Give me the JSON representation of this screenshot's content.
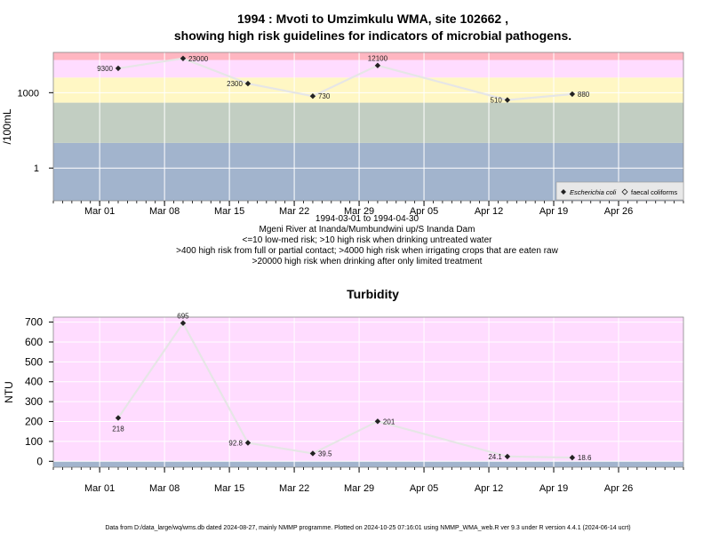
{
  "colors": {
    "band_red": "#ffb6c1",
    "band_pink": "#ffdcff",
    "band_yellow": "#fff7c4",
    "band_green": "#c2cec2",
    "band_blue": "#a2b4cd",
    "grid": "#ffffff",
    "line": "#e6e6e6",
    "marker": "#222222"
  },
  "chart_data": [
    {
      "type": "line",
      "title": "1994 : Mvoti to Umzimkulu WMA, site 102662 ,",
      "subtitle": "showing high risk guidelines for indicators of microbial pathogens.",
      "ylabel": "/100mL",
      "y_scale": "log10",
      "ylim": [
        0.05,
        40000
      ],
      "y_ticks": [
        {
          "v": 1,
          "label": "1"
        },
        {
          "v": 1000,
          "label": "1000"
        }
      ],
      "x_ticks": [
        "Mar 01",
        "Mar 08",
        "Mar 15",
        "Mar 22",
        "Mar 29",
        "Apr 05",
        "Apr 12",
        "Apr 19",
        "Apr 26"
      ],
      "x_tick_dates": [
        "1994-03-01",
        "1994-03-08",
        "1994-03-15",
        "1994-03-22",
        "1994-03-29",
        "1994-04-05",
        "1994-04-12",
        "1994-04-19",
        "1994-04-26"
      ],
      "xlim": [
        "1994-02-24",
        "1994-05-03"
      ],
      "footer_lines": [
        "1994-03-01 to 1994-04-30",
        "Mgeni River at Inanda/Mumbundwini up/S Inanda Dam",
        "<=10 low-med risk; >10 high risk when drinking untreated water",
        ">400 high risk from full or partial contact; >4000 high risk when irrigating crops that are eaten raw",
        ">20000 high risk when drinking after only limited treatment"
      ],
      "bands": [
        {
          "from": 0.05,
          "to": 10,
          "color_key": "band_blue"
        },
        {
          "from": 10,
          "to": 400,
          "color_key": "band_green"
        },
        {
          "from": 400,
          "to": 4000,
          "color_key": "band_yellow"
        },
        {
          "from": 4000,
          "to": 20000,
          "color_key": "band_pink"
        },
        {
          "from": 20000,
          "to": 40000,
          "color_key": "band_red"
        }
      ],
      "legend": {
        "position": "bottom-right",
        "entries": [
          {
            "name": "Escherichia coli",
            "marker": "filled-diamond",
            "italic": true
          },
          {
            "name": "faecal coliforms",
            "marker": "open-diamond",
            "italic": false
          }
        ]
      },
      "series": [
        {
          "name": "Escherichia coli",
          "points": [
            {
              "x": "1994-03-03",
              "y": 9300,
              "label": "9300",
              "label_side": "left"
            },
            {
              "x": "1994-03-10",
              "y": 23000,
              "label": "23000",
              "label_side": "right"
            },
            {
              "x": "1994-03-17",
              "y": 2300,
              "label": "2300",
              "label_side": "left"
            },
            {
              "x": "1994-03-24",
              "y": 730,
              "label": "730",
              "label_side": "right"
            },
            {
              "x": "1994-03-31",
              "y": 12100,
              "label": "12100",
              "label_side": "above"
            },
            {
              "x": "1994-04-14",
              "y": 510,
              "label": "510",
              "label_side": "left"
            },
            {
              "x": "1994-04-21",
              "y": 880,
              "label": "880",
              "label_side": "right"
            }
          ]
        }
      ]
    },
    {
      "type": "line",
      "title": "Turbidity",
      "ylabel": "NTU",
      "y_scale": "linear",
      "ylim": [
        -30,
        725
      ],
      "y_ticks": [
        0,
        100,
        200,
        300,
        400,
        500,
        600,
        700
      ],
      "x_ticks": [
        "Mar 01",
        "Mar 08",
        "Mar 15",
        "Mar 22",
        "Mar 29",
        "Apr 05",
        "Apr 12",
        "Apr 19",
        "Apr 26"
      ],
      "x_tick_dates": [
        "1994-03-01",
        "1994-03-08",
        "1994-03-15",
        "1994-03-22",
        "1994-03-29",
        "1994-04-05",
        "1994-04-12",
        "1994-04-19",
        "1994-04-26"
      ],
      "xlim": [
        "1994-02-24",
        "1994-05-03"
      ],
      "bands": [
        {
          "from": -30,
          "to": 0,
          "color_key": "band_blue"
        },
        {
          "from": 0,
          "to": 725,
          "color_key": "band_pink"
        }
      ],
      "series": [
        {
          "name": "",
          "points": [
            {
              "x": "1994-03-03",
              "y": 218,
              "label": "218",
              "label_side": "below"
            },
            {
              "x": "1994-03-10",
              "y": 695,
              "label": "695",
              "label_side": "above"
            },
            {
              "x": "1994-03-17",
              "y": 92.8,
              "label": "92.8",
              "label_side": "left"
            },
            {
              "x": "1994-03-24",
              "y": 39.5,
              "label": "39.5",
              "label_side": "right"
            },
            {
              "x": "1994-03-31",
              "y": 201,
              "label": "201",
              "label_side": "right"
            },
            {
              "x": "1994-04-14",
              "y": 24.1,
              "label": "24.1",
              "label_side": "left"
            },
            {
              "x": "1994-04-21",
              "y": 18.6,
              "label": "18.6",
              "label_side": "right"
            }
          ]
        }
      ]
    }
  ],
  "footer_note": "Data from D:/data_large/wq/wms.db dated 2024-08-27, mainly NMMP programme. Plotted on 2024-10-25 07:16:01 using NMMP_WMA_web.R ver 9.3 under R version 4.4.1 (2024-06-14 ucrt)"
}
